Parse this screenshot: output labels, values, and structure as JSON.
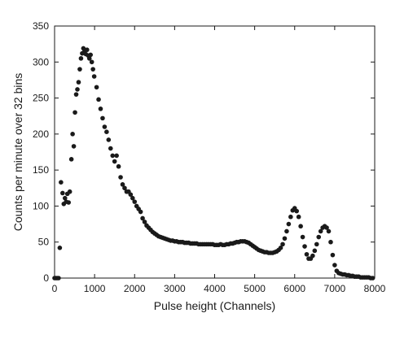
{
  "chart_data": {
    "type": "scatter",
    "title": "",
    "xlabel": "Pulse height (Channels)",
    "ylabel": "Counts per minute over 32 bins",
    "xlim": [
      0,
      8000
    ],
    "ylim": [
      0,
      350
    ],
    "xticks": [
      0,
      1000,
      2000,
      3000,
      4000,
      5000,
      6000,
      7000,
      8000
    ],
    "yticks": [
      0,
      50,
      100,
      150,
      200,
      250,
      300,
      350
    ],
    "grid": false,
    "legend": "none",
    "marker_color": "#1a1a1a",
    "series": [
      {
        "points": [
          [
            0,
            0
          ],
          [
            32,
            0
          ],
          [
            64,
            0
          ],
          [
            100,
            0
          ],
          [
            130,
            42
          ],
          [
            160,
            133
          ],
          [
            200,
            118
          ],
          [
            230,
            103
          ],
          [
            260,
            111
          ],
          [
            290,
            106
          ],
          [
            320,
            117
          ],
          [
            350,
            105
          ],
          [
            380,
            120
          ],
          [
            420,
            165
          ],
          [
            450,
            200
          ],
          [
            480,
            183
          ],
          [
            510,
            230
          ],
          [
            540,
            255
          ],
          [
            570,
            262
          ],
          [
            600,
            272
          ],
          [
            630,
            290
          ],
          [
            660,
            305
          ],
          [
            690,
            312
          ],
          [
            720,
            319
          ],
          [
            750,
            316
          ],
          [
            780,
            311
          ],
          [
            810,
            317
          ],
          [
            840,
            309
          ],
          [
            870,
            305
          ],
          [
            900,
            310
          ],
          [
            930,
            300
          ],
          [
            960,
            290
          ],
          [
            990,
            280
          ],
          [
            1050,
            265
          ],
          [
            1100,
            248
          ],
          [
            1150,
            235
          ],
          [
            1200,
            222
          ],
          [
            1250,
            210
          ],
          [
            1300,
            203
          ],
          [
            1350,
            192
          ],
          [
            1400,
            180
          ],
          [
            1450,
            170
          ],
          [
            1500,
            162
          ],
          [
            1550,
            170
          ],
          [
            1600,
            155
          ],
          [
            1650,
            140
          ],
          [
            1700,
            130
          ],
          [
            1750,
            125
          ],
          [
            1800,
            120
          ],
          [
            1850,
            120
          ],
          [
            1900,
            116
          ],
          [
            1950,
            111
          ],
          [
            2000,
            106
          ],
          [
            2050,
            100
          ],
          [
            2100,
            96
          ],
          [
            2150,
            92
          ],
          [
            2200,
            83
          ],
          [
            2250,
            78
          ],
          [
            2300,
            73
          ],
          [
            2350,
            70
          ],
          [
            2400,
            67
          ],
          [
            2450,
            64
          ],
          [
            2500,
            62
          ],
          [
            2550,
            60
          ],
          [
            2600,
            58
          ],
          [
            2650,
            57
          ],
          [
            2700,
            56
          ],
          [
            2750,
            55
          ],
          [
            2800,
            54
          ],
          [
            2850,
            53
          ],
          [
            2900,
            52
          ],
          [
            2950,
            52
          ],
          [
            3000,
            51
          ],
          [
            3050,
            51
          ],
          [
            3100,
            50
          ],
          [
            3150,
            50
          ],
          [
            3200,
            50
          ],
          [
            3250,
            49
          ],
          [
            3300,
            49
          ],
          [
            3350,
            49
          ],
          [
            3400,
            48
          ],
          [
            3450,
            48
          ],
          [
            3500,
            48
          ],
          [
            3550,
            48
          ],
          [
            3600,
            47
          ],
          [
            3650,
            47
          ],
          [
            3700,
            47
          ],
          [
            3750,
            47
          ],
          [
            3800,
            47
          ],
          [
            3850,
            47
          ],
          [
            3900,
            47
          ],
          [
            3950,
            47
          ],
          [
            4000,
            46
          ],
          [
            4050,
            46
          ],
          [
            4100,
            46
          ],
          [
            4150,
            47
          ],
          [
            4200,
            46
          ],
          [
            4250,
            46
          ],
          [
            4300,
            47
          ],
          [
            4350,
            47
          ],
          [
            4400,
            48
          ],
          [
            4450,
            48
          ],
          [
            4500,
            49
          ],
          [
            4550,
            50
          ],
          [
            4600,
            50
          ],
          [
            4650,
            51
          ],
          [
            4700,
            51
          ],
          [
            4750,
            51
          ],
          [
            4800,
            50
          ],
          [
            4850,
            49
          ],
          [
            4900,
            47
          ],
          [
            4950,
            45
          ],
          [
            5000,
            43
          ],
          [
            5050,
            41
          ],
          [
            5100,
            39
          ],
          [
            5150,
            38
          ],
          [
            5200,
            37
          ],
          [
            5250,
            36
          ],
          [
            5300,
            36
          ],
          [
            5350,
            35
          ],
          [
            5400,
            35
          ],
          [
            5450,
            35
          ],
          [
            5500,
            36
          ],
          [
            5550,
            37
          ],
          [
            5600,
            39
          ],
          [
            5650,
            42
          ],
          [
            5700,
            47
          ],
          [
            5750,
            55
          ],
          [
            5800,
            65
          ],
          [
            5850,
            75
          ],
          [
            5900,
            85
          ],
          [
            5950,
            94
          ],
          [
            6000,
            97
          ],
          [
            6050,
            93
          ],
          [
            6100,
            85
          ],
          [
            6150,
            72
          ],
          [
            6200,
            57
          ],
          [
            6250,
            44
          ],
          [
            6300,
            33
          ],
          [
            6350,
            27
          ],
          [
            6400,
            27
          ],
          [
            6450,
            31
          ],
          [
            6500,
            38
          ],
          [
            6550,
            47
          ],
          [
            6600,
            57
          ],
          [
            6650,
            65
          ],
          [
            6700,
            70
          ],
          [
            6750,
            72
          ],
          [
            6800,
            70
          ],
          [
            6850,
            65
          ],
          [
            6900,
            50
          ],
          [
            6950,
            32
          ],
          [
            7000,
            18
          ],
          [
            7050,
            10
          ],
          [
            7100,
            7
          ],
          [
            7150,
            6
          ],
          [
            7200,
            5
          ],
          [
            7250,
            5
          ],
          [
            7300,
            4
          ],
          [
            7350,
            4
          ],
          [
            7400,
            3
          ],
          [
            7450,
            3
          ],
          [
            7500,
            2
          ],
          [
            7550,
            2
          ],
          [
            7600,
            2
          ],
          [
            7650,
            1
          ],
          [
            7700,
            1
          ],
          [
            7750,
            1
          ],
          [
            7800,
            1
          ],
          [
            7850,
            1
          ],
          [
            7900,
            0
          ],
          [
            7950,
            0
          ]
        ]
      }
    ]
  }
}
